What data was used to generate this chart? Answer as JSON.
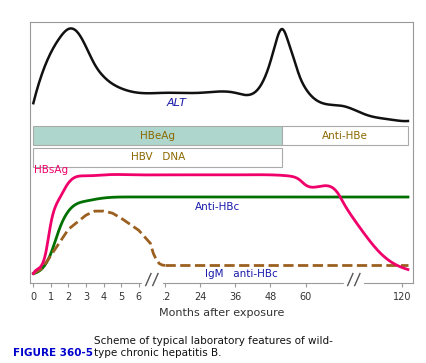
{
  "figure_label": "FIGURE 360-5",
  "figure_caption_bold": "FIGURE 360-5",
  "figure_caption_text": "    Scheme of typical laboratory features of wild-\ntype chronic hepatitis B.",
  "xlabel": "Months after exposure",
  "background_color": "#ffffff",
  "plot_bg_color": "#ffffff",
  "border_color": "#999999",
  "hbeag_color": "#aed6cc",
  "box_text_color": "#8B6800",
  "ALT_color": "#111111",
  "HBsAg_color": "#f0006a",
  "AntiHBc_color": "#007000",
  "IgM_color": "#9B6020",
  "annotation_color": "#1a1aaa",
  "caption_label_color": "#0000cc",
  "tick_label_color": "#333333"
}
